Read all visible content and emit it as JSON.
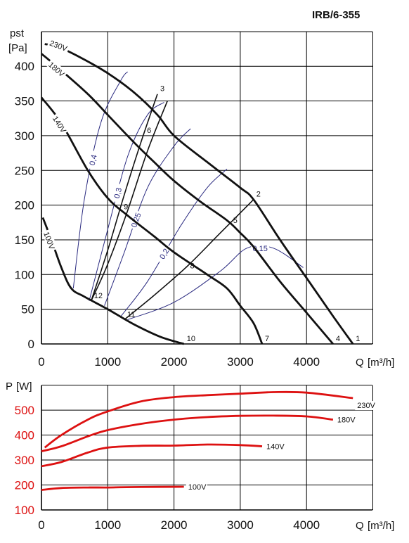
{
  "chart_data": [
    {
      "type": "line",
      "title": "IRB/6-355",
      "ylabel": "pst",
      "yunit": "[Pa]",
      "xlabel": "Q",
      "xunit": "[m³/h]",
      "xlim": [
        0,
        5000
      ],
      "ylim": [
        0,
        450
      ],
      "xticks": [
        0,
        1000,
        2000,
        3000,
        4000
      ],
      "yticks": [
        0,
        50,
        100,
        150,
        200,
        250,
        300,
        350,
        400
      ],
      "grid": true,
      "colors": {
        "curve": "#111111",
        "efficiency": "#2a2a80",
        "grid": "#000000"
      },
      "series": [
        {
          "name": "230V",
          "x": [
            50,
            250,
            600,
            1000,
            1400,
            1750,
            2000,
            2500,
            3000,
            3200,
            3600,
            4000,
            4400,
            4700
          ],
          "y": [
            432,
            428,
            412,
            390,
            362,
            330,
            300,
            262,
            225,
            208,
            150,
            95,
            40,
            0
          ]
        },
        {
          "name": "180V",
          "x": [
            0,
            250,
            700,
            1000,
            1400,
            1700,
            2000,
            2400,
            2800,
            3000,
            3200,
            3600,
            4000,
            4400
          ],
          "y": [
            418,
            398,
            360,
            330,
            290,
            262,
            235,
            205,
            178,
            160,
            140,
            90,
            45,
            0
          ]
        },
        {
          "name": "140V",
          "x": [
            0,
            300,
            700,
            1000,
            1300,
            1700,
            2000,
            2500,
            2800,
            3000,
            3200,
            3330
          ],
          "y": [
            355,
            318,
            250,
            210,
            185,
            155,
            132,
            100,
            80,
            55,
            30,
            0
          ]
        },
        {
          "name": "100V",
          "x": [
            20,
            150,
            300,
            450,
            650,
            1000,
            1400,
            1800,
            2150
          ],
          "y": [
            182,
            150,
            110,
            80,
            68,
            50,
            28,
            10,
            0
          ]
        }
      ],
      "system_curves": [
        {
          "x": [
            750,
            1000,
            1250,
            1500,
            1750
          ],
          "y": [
            62,
            135,
            215,
            290,
            360
          ]
        },
        {
          "x": [
            750,
            1000,
            1300,
            1600,
            1900
          ],
          "y": [
            62,
            115,
            192,
            278,
            350
          ]
        },
        {
          "x": [
            1250,
            1700,
            2200,
            2700,
            3200
          ],
          "y": [
            35,
            70,
            112,
            160,
            208
          ]
        }
      ],
      "efficiency_curves": [
        {
          "name": "0,4",
          "x": [
            480,
            650,
            900,
            1200,
            1300
          ],
          "y": [
            80,
            210,
            320,
            380,
            392
          ]
        },
        {
          "name": "0,3",
          "x": [
            720,
            1000,
            1300,
            1600,
            1850
          ],
          "y": [
            62,
            165,
            270,
            330,
            348
          ]
        },
        {
          "name": "0,25",
          "x": [
            950,
            1250,
            1600,
            2000,
            2250
          ],
          "y": [
            55,
            132,
            225,
            285,
            310
          ]
        },
        {
          "name": "0,2",
          "x": [
            1200,
            1600,
            2100,
            2500,
            2800
          ],
          "y": [
            40,
            90,
            170,
            225,
            252
          ]
        },
        {
          "name": "0,15",
          "x": [
            1300,
            2000,
            2700,
            3100,
            3500,
            3950
          ],
          "y": [
            35,
            60,
            105,
            138,
            138,
            110
          ]
        }
      ],
      "points": [
        {
          "label": "1",
          "x": 4700,
          "y": 0
        },
        {
          "label": "2",
          "x": 3200,
          "y": 208
        },
        {
          "label": "3",
          "x": 1750,
          "y": 360
        },
        {
          "label": "4",
          "x": 4400,
          "y": 0
        },
        {
          "label": "5",
          "x": 2850,
          "y": 170
        },
        {
          "label": "6",
          "x": 1550,
          "y": 300
        },
        {
          "label": "7",
          "x": 3330,
          "y": 0
        },
        {
          "label": "8",
          "x": 2200,
          "y": 105
        },
        {
          "label": "9",
          "x": 1200,
          "y": 190
        },
        {
          "label": "10",
          "x": 2150,
          "y": 0
        },
        {
          "label": "11",
          "x": 1250,
          "y": 35
        },
        {
          "label": "12",
          "x": 750,
          "y": 62
        }
      ]
    },
    {
      "type": "line",
      "ylabel": "P",
      "yunit": "[W]",
      "xlabel": "Q",
      "xunit": "[m³/h]",
      "xlim": [
        0,
        5000
      ],
      "ylim": [
        100,
        600
      ],
      "xticks": [
        0,
        1000,
        2000,
        3000,
        4000
      ],
      "yticks": [
        100,
        200,
        300,
        400,
        500
      ],
      "grid": true,
      "colors": {
        "curve": "#dd1111",
        "label": "#dd1111"
      },
      "series": [
        {
          "name": "230V",
          "x": [
            50,
            300,
            700,
            1000,
            1500,
            2000,
            2500,
            3000,
            3500,
            4000,
            4700
          ],
          "y": [
            350,
            400,
            462,
            495,
            535,
            552,
            560,
            566,
            572,
            570,
            548
          ]
        },
        {
          "name": "180V",
          "x": [
            0,
            300,
            700,
            1000,
            1500,
            2000,
            2500,
            3000,
            3500,
            4000,
            4400
          ],
          "y": [
            335,
            355,
            395,
            420,
            445,
            462,
            472,
            477,
            478,
            475,
            462
          ]
        },
        {
          "name": "140V",
          "x": [
            0,
            300,
            700,
            1000,
            1500,
            2000,
            2500,
            3000,
            3330
          ],
          "y": [
            275,
            292,
            330,
            350,
            357,
            358,
            362,
            360,
            355
          ]
        },
        {
          "name": "100V",
          "x": [
            0,
            300,
            700,
            1000,
            1500,
            2150
          ],
          "y": [
            180,
            188,
            190,
            190,
            192,
            193
          ]
        }
      ]
    }
  ]
}
